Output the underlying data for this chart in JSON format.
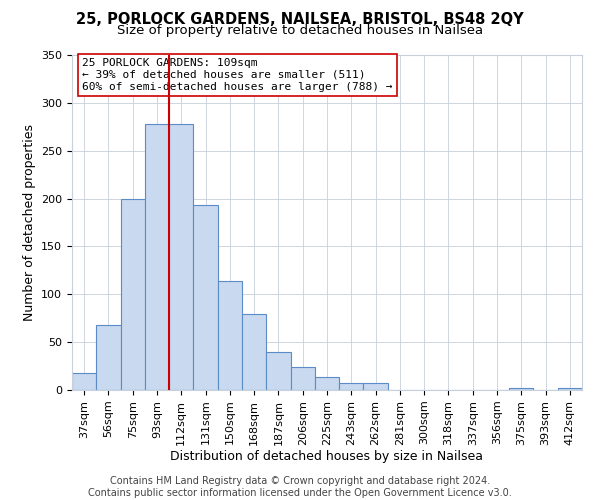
{
  "title1": "25, PORLOCK GARDENS, NAILSEA, BRISTOL, BS48 2QY",
  "title2": "Size of property relative to detached houses in Nailsea",
  "xlabel": "Distribution of detached houses by size in Nailsea",
  "ylabel": "Number of detached properties",
  "bar_labels": [
    "37sqm",
    "56sqm",
    "75sqm",
    "93sqm",
    "112sqm",
    "131sqm",
    "150sqm",
    "168sqm",
    "187sqm",
    "206sqm",
    "225sqm",
    "243sqm",
    "262sqm",
    "281sqm",
    "300sqm",
    "318sqm",
    "337sqm",
    "356sqm",
    "375sqm",
    "393sqm",
    "412sqm"
  ],
  "bar_values": [
    18,
    68,
    200,
    278,
    278,
    193,
    114,
    79,
    40,
    24,
    14,
    7,
    7,
    0,
    0,
    0,
    0,
    0,
    2,
    0,
    2
  ],
  "bar_color": "#c9d9f0",
  "bar_edgecolor": "#5b8cc8",
  "vline_color": "#cc0000",
  "vline_x_index": 3.5,
  "annotation_text": "25 PORLOCK GARDENS: 109sqm\n← 39% of detached houses are smaller (511)\n60% of semi-detached houses are larger (788) →",
  "annotation_box_edgecolor": "#cc0000",
  "annotation_box_facecolor": "#ffffff",
  "ylim": [
    0,
    350
  ],
  "yticks": [
    0,
    50,
    100,
    150,
    200,
    250,
    300,
    350
  ],
  "footer1": "Contains HM Land Registry data © Crown copyright and database right 2024.",
  "footer2": "Contains public sector information licensed under the Open Government Licence v3.0.",
  "bg_color": "#ffffff",
  "grid_color": "#c8d0dc",
  "title1_fontsize": 10.5,
  "title2_fontsize": 9.5,
  "axis_label_fontsize": 9,
  "tick_fontsize": 8,
  "annotation_fontsize": 8,
  "footer_fontsize": 7
}
